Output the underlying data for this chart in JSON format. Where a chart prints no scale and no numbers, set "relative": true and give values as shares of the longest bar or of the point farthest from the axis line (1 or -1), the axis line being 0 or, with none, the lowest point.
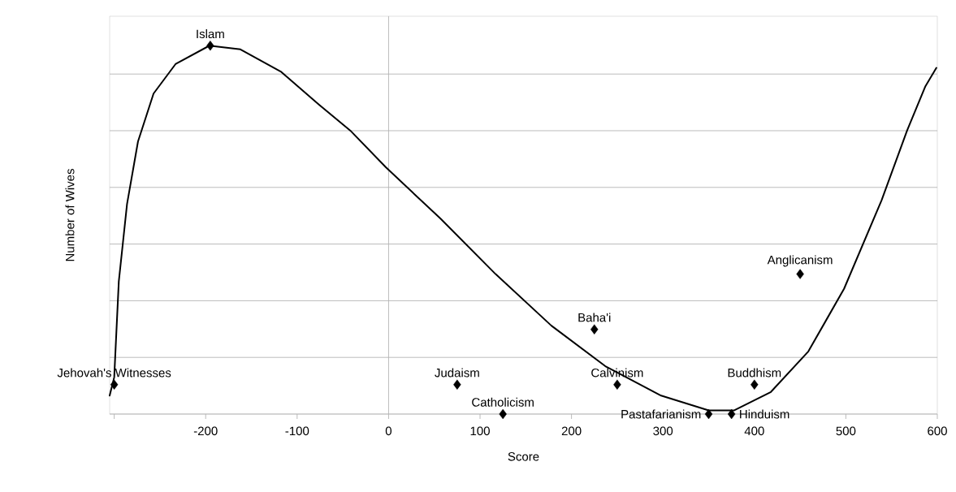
{
  "chart_data": {
    "type": "scatter",
    "xlabel": "Score",
    "ylabel": "Number of Wives",
    "relative": true,
    "grid": "y",
    "xlim": [
      -305,
      600
    ],
    "xticks": [
      {
        "value": -300,
        "label": null
      },
      -200,
      -100,
      0,
      100,
      200,
      300,
      400,
      500,
      600
    ],
    "ref_lines": [
      {
        "axis": "x",
        "value": 0,
        "color": "#b3b3b3"
      }
    ],
    "series": [
      {
        "color": "#000000",
        "marker": "diamond",
        "x": [
          -300,
          -195,
          75,
          125,
          225,
          250,
          350,
          375,
          400,
          450
        ],
        "values": [
          0.08,
          1.0,
          0.08,
          0,
          0.23,
          0.08,
          0,
          0,
          0.08,
          0.38
        ]
      },
      {
        "type": "line",
        "color": "#000000",
        "marker": "none",
        "line_style": "solid",
        "x": [
          -305,
          -300,
          -295,
          -286,
          -274,
          -257,
          -233,
          -196,
          -162,
          -118,
          -76,
          -42,
          -3,
          57,
          117,
          178,
          237,
          298,
          350,
          378,
          418,
          459,
          498,
          539,
          567,
          587,
          599
        ],
        "values": [
          0.05,
          0.1,
          0.36,
          0.57,
          0.74,
          0.87,
          0.95,
          1.0,
          0.99,
          0.93,
          0.84,
          0.77,
          0.67,
          0.53,
          0.38,
          0.24,
          0.13,
          0.05,
          0.01,
          0.01,
          0.06,
          0.17,
          0.34,
          0.58,
          0.77,
          0.89,
          0.94
        ]
      }
    ],
    "annotations": [
      {
        "text": "Jehovah's Witnesses",
        "x": -300,
        "y": 0.08
      },
      {
        "text": "Islam",
        "x": -195,
        "y": 1.0
      },
      {
        "text": "Judaism",
        "x": 75,
        "y": 0.08
      },
      {
        "text": "Catholicism",
        "x": 125,
        "y": 0
      },
      {
        "text": "Baha'i",
        "x": 225,
        "y": 0.23
      },
      {
        "text": "Calvinism",
        "x": 250,
        "y": 0.08
      },
      {
        "text": "Pastafarianism",
        "x": 350,
        "y": 0
      },
      {
        "text": "Hinduism",
        "x": 375,
        "y": 0
      },
      {
        "text": "Buddhism",
        "x": 400,
        "y": 0.08
      },
      {
        "text": "Anglicanism",
        "x": 450,
        "y": 0.38
      }
    ]
  }
}
